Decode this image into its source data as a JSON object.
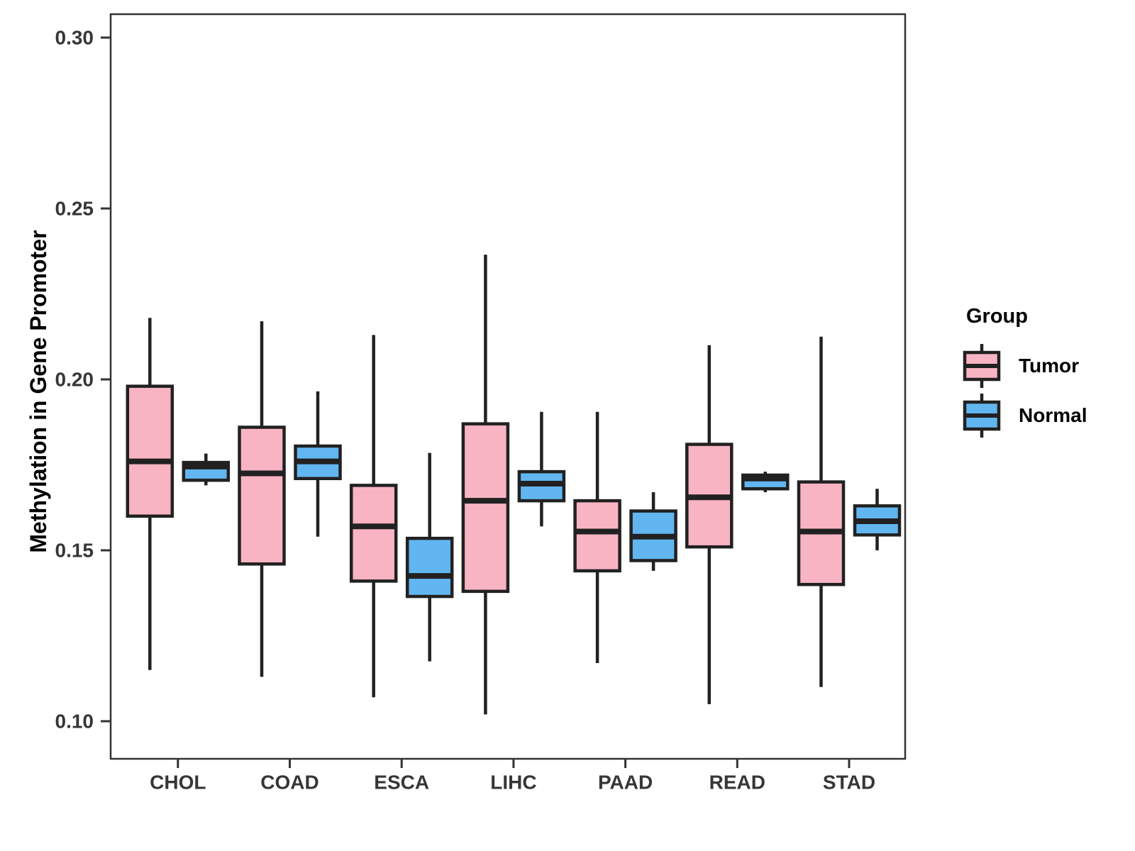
{
  "chart_data": {
    "type": "boxplot",
    "ylabel": "Methylation in Gene Promoter",
    "categories": [
      "CHOL",
      "COAD",
      "ESCA",
      "LIHC",
      "PAAD",
      "READ",
      "STAD"
    ],
    "y_axis": {
      "tick_values": [
        0.3,
        0.25,
        0.2,
        0.15,
        0.1
      ],
      "tick_labels": [
        "0.30",
        "0.25",
        "0.20",
        "0.15",
        "0.10"
      ],
      "range": [
        0.092,
        0.306
      ],
      "grid": false
    },
    "legend": {
      "title": "Group",
      "position": "right",
      "entries": [
        "Tumor",
        "Normal"
      ]
    },
    "series": [
      {
        "name": "Tumor",
        "fill": "#F9B4C4",
        "boxes": [
          {
            "category": "CHOL",
            "low": 0.115,
            "q1": 0.16,
            "median": 0.176,
            "q3": 0.198,
            "high": 0.218
          },
          {
            "category": "COAD",
            "low": 0.113,
            "q1": 0.146,
            "median": 0.1725,
            "q3": 0.186,
            "high": 0.217
          },
          {
            "category": "ESCA",
            "low": 0.107,
            "q1": 0.141,
            "median": 0.157,
            "q3": 0.169,
            "high": 0.213
          },
          {
            "category": "LIHC",
            "low": 0.102,
            "q1": 0.138,
            "median": 0.1645,
            "q3": 0.187,
            "high": 0.2365
          },
          {
            "category": "PAAD",
            "low": 0.117,
            "q1": 0.144,
            "median": 0.1555,
            "q3": 0.1645,
            "high": 0.1905
          },
          {
            "category": "READ",
            "low": 0.105,
            "q1": 0.151,
            "median": 0.1655,
            "q3": 0.181,
            "high": 0.21
          },
          {
            "category": "STAD",
            "low": 0.11,
            "q1": 0.14,
            "median": 0.1555,
            "q3": 0.17,
            "high": 0.2125
          }
        ]
      },
      {
        "name": "Normal",
        "fill": "#62B6F0",
        "boxes": [
          {
            "category": "CHOL",
            "low": 0.169,
            "q1": 0.1705,
            "median": 0.1745,
            "q3": 0.1757,
            "high": 0.1783
          },
          {
            "category": "COAD",
            "low": 0.154,
            "q1": 0.171,
            "median": 0.176,
            "q3": 0.1805,
            "high": 0.1965
          },
          {
            "category": "ESCA",
            "low": 0.1175,
            "q1": 0.1365,
            "median": 0.1425,
            "q3": 0.1535,
            "high": 0.1785
          },
          {
            "category": "LIHC",
            "low": 0.157,
            "q1": 0.1645,
            "median": 0.1695,
            "q3": 0.173,
            "high": 0.1905
          },
          {
            "category": "PAAD",
            "low": 0.144,
            "q1": 0.147,
            "median": 0.154,
            "q3": 0.1615,
            "high": 0.167
          },
          {
            "category": "READ",
            "low": 0.167,
            "q1": 0.168,
            "median": 0.171,
            "q3": 0.172,
            "high": 0.173
          },
          {
            "category": "STAD",
            "low": 0.15,
            "q1": 0.1545,
            "median": 0.1585,
            "q3": 0.163,
            "high": 0.168
          }
        ]
      }
    ],
    "colors": {
      "box_stroke": "#212121",
      "median_stroke": "#212121",
      "panel_border": "#333333",
      "tick_text": "#363636",
      "title_text": "#000000"
    }
  }
}
